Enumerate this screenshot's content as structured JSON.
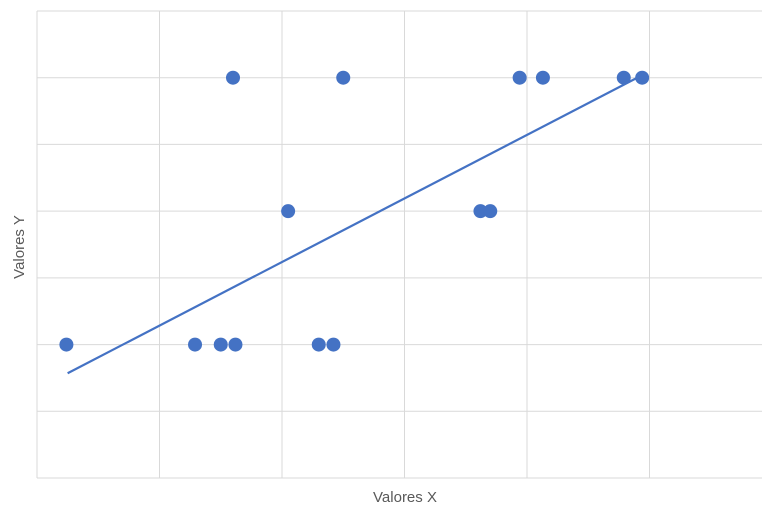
{
  "chart_data": {
    "type": "scatter",
    "title": "",
    "xlabel": "Valores X",
    "ylabel": "Valores Y",
    "xlim": [
      0,
      6
    ],
    "ylim": [
      0,
      7
    ],
    "grid": true,
    "legend": "none",
    "colors": {
      "marker": "#4472C4",
      "trendline": "#4472C4",
      "grid": "#D9D9D9"
    },
    "series": [
      {
        "points": [
          {
            "x": 0.24,
            "y": 2
          },
          {
            "x": 1.29,
            "y": 2
          },
          {
            "x": 1.5,
            "y": 2
          },
          {
            "x": 1.62,
            "y": 2
          },
          {
            "x": 2.3,
            "y": 2
          },
          {
            "x": 2.42,
            "y": 2
          },
          {
            "x": 1.6,
            "y": 6
          },
          {
            "x": 2.5,
            "y": 6
          },
          {
            "x": 2.05,
            "y": 4
          },
          {
            "x": 3.62,
            "y": 4
          },
          {
            "x": 3.7,
            "y": 4
          },
          {
            "x": 3.94,
            "y": 6
          },
          {
            "x": 4.13,
            "y": 6
          },
          {
            "x": 4.79,
            "y": 6
          },
          {
            "x": 4.94,
            "y": 6
          }
        ]
      }
    ],
    "trendline": {
      "type": "linear",
      "from": {
        "x": 0.25,
        "y": 1.57
      },
      "to": {
        "x": 4.9,
        "y": 6.0
      }
    }
  }
}
